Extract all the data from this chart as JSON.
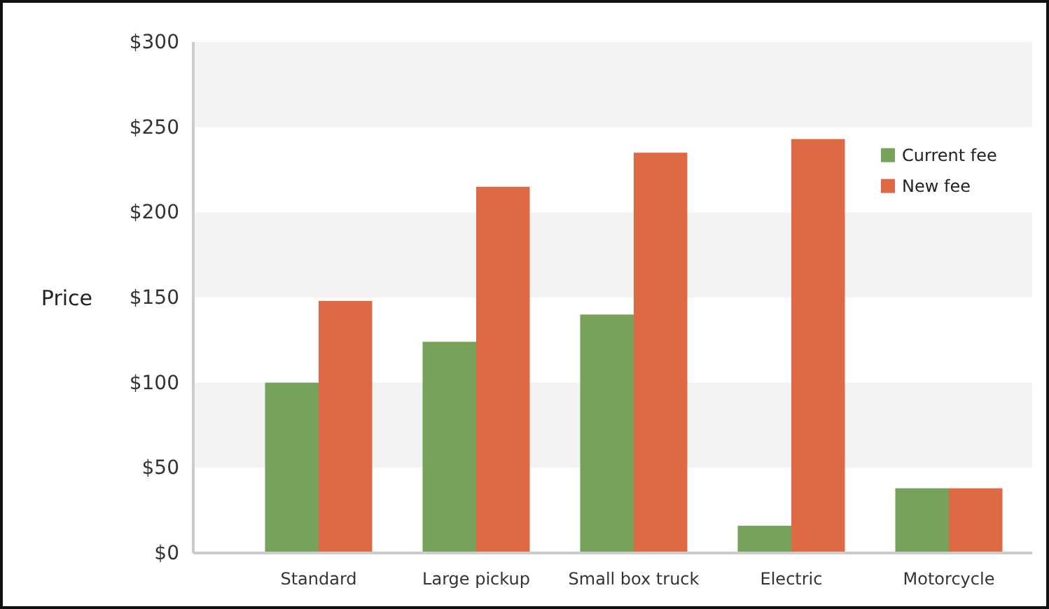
{
  "chart_data": {
    "type": "bar",
    "ylabel": "Price",
    "categories": [
      "Standard",
      "Large pickup",
      "Small box truck",
      "Electric",
      "Motorcycle"
    ],
    "series": [
      {
        "name": "Current fee",
        "color": "#77a25b",
        "values": [
          100,
          124,
          140,
          16,
          38
        ]
      },
      {
        "name": "New fee",
        "color": "#dd6a44",
        "values": [
          148,
          215,
          235,
          243,
          38
        ]
      }
    ],
    "ylim": [
      0,
      300
    ],
    "yticks": [
      {
        "value": 0,
        "label": "$0"
      },
      {
        "value": 50,
        "label": "$50"
      },
      {
        "value": 100,
        "label": "$100"
      },
      {
        "value": 150,
        "label": "$150"
      },
      {
        "value": 200,
        "label": "$200"
      },
      {
        "value": 250,
        "label": "$250"
      },
      {
        "value": 300,
        "label": "$300"
      }
    ],
    "bands": [
      {
        "axis": "y",
        "from": 50,
        "to": 100,
        "color": "#f3f3f3"
      },
      {
        "axis": "y",
        "from": 150,
        "to": 200,
        "color": "#f3f3f3"
      },
      {
        "axis": "y",
        "from": 250,
        "to": 300,
        "color": "#f3f3f3"
      }
    ],
    "legend": "top right"
  }
}
